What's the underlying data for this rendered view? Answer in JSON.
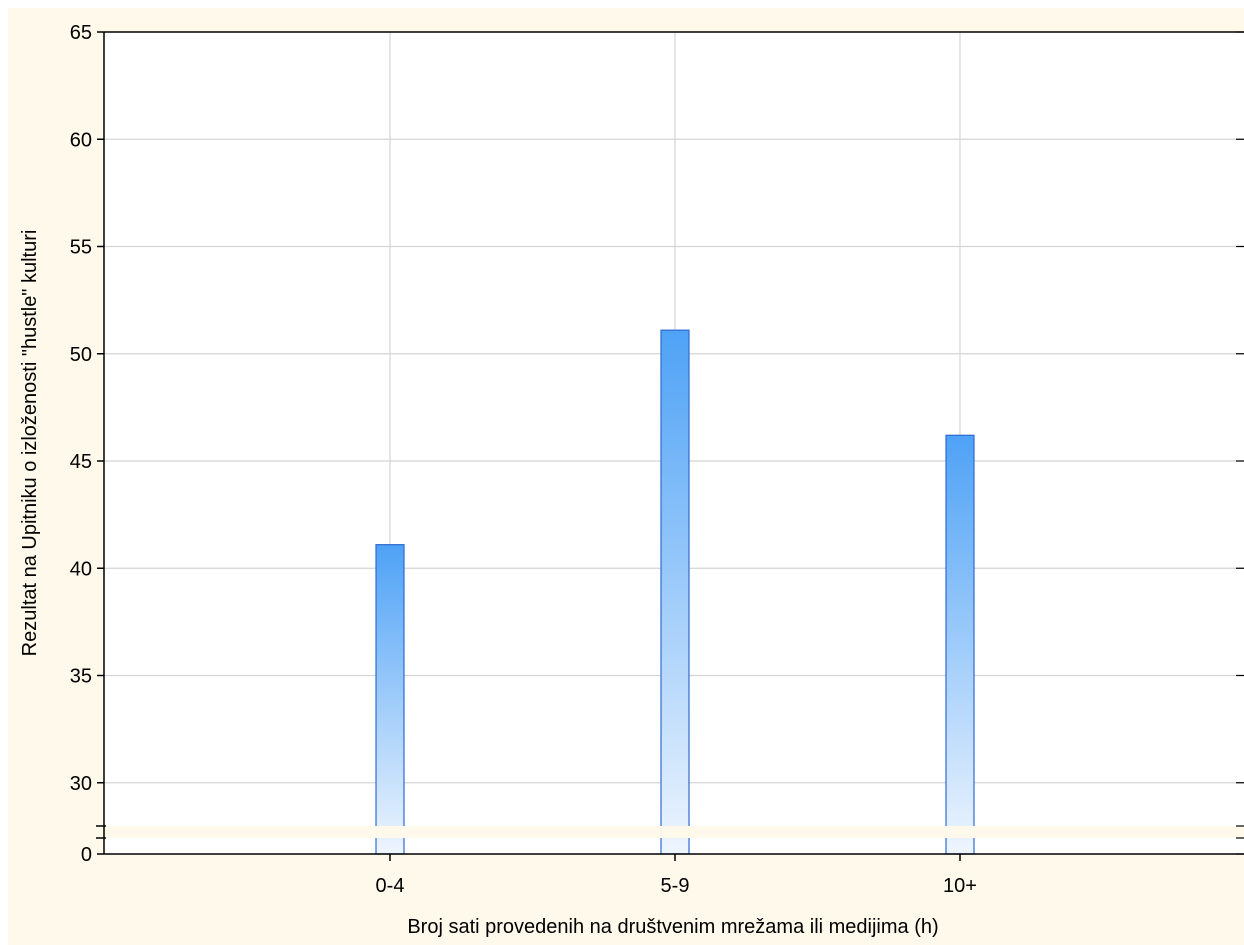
{
  "chart_data": {
    "type": "bar",
    "title": "",
    "xlabel": "Broj sati provedenih na društvenim mrežama ili medijima (h)",
    "ylabel": "Rezultat na Upitniku o izloženosti \"hustle\" kulturi",
    "categories": [
      "0-4",
      "5-9",
      "10+"
    ],
    "values": [
      41.1,
      51.1,
      46.2
    ],
    "ylim": [
      0,
      65
    ],
    "axis_break": {
      "lower_value": 0,
      "upper_start": 28
    },
    "y_ticks": [
      0,
      30,
      35,
      40,
      45,
      50,
      55,
      60,
      65
    ],
    "y_tick_labels": [
      "0",
      "30",
      "35",
      "40",
      "45",
      "50",
      "55",
      "60",
      "65"
    ],
    "grid": true,
    "legend": "none",
    "colors": {
      "background": "#fff9eb",
      "plot_area": "#ffffff",
      "grid": "#d4d4d4",
      "bar_top": "#4ea2f6",
      "bar_bottom": "#eef5fe",
      "bar_stroke": "#2f6bd0"
    }
  }
}
